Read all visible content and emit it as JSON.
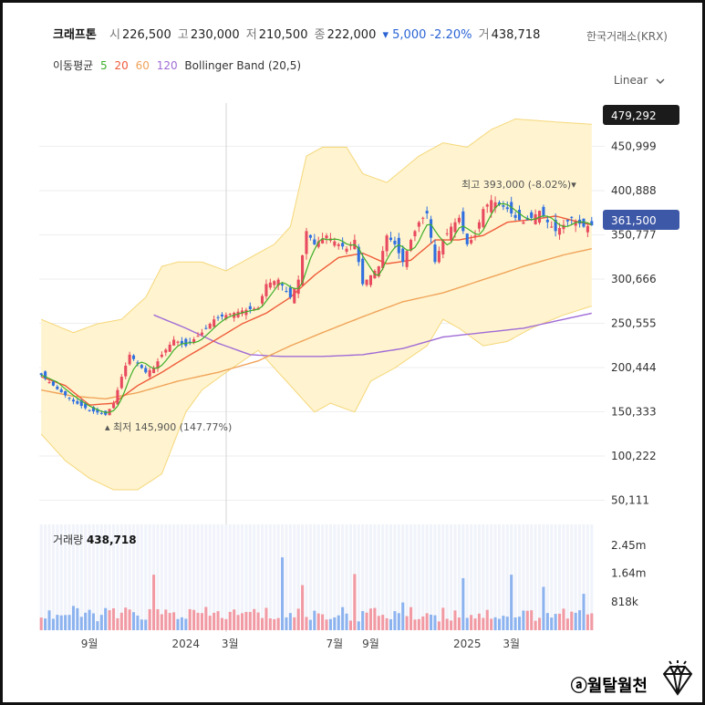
{
  "header": {
    "name": "크래프톤",
    "open_label": "시",
    "open": "226,500",
    "high_label": "고",
    "high": "230,000",
    "low_label": "저",
    "low": "210,500",
    "close_label": "종",
    "close": "222,000",
    "change": "▾ 5,000 -2.20%",
    "volume_label": "거",
    "volume": "438,718",
    "exchange": "한국거래소(KRX)"
  },
  "indicators": {
    "ma_label": "이동평균",
    "ma_periods": [
      "5",
      "20",
      "60",
      "120"
    ],
    "ma_colors": [
      "#3fae2a",
      "#ef5b3a",
      "#f0a35a",
      "#a06bd6"
    ],
    "bollinger": "Bollinger Band (20,5)"
  },
  "scale_mode": "Linear",
  "scale_icon": "chevron-down-icon",
  "colors": {
    "up": "#e84a5f",
    "down": "#2f6fe0",
    "band": "#fff4cf",
    "band_line": "#f5d77a"
  },
  "chart_data": {
    "type": "candlestick",
    "y_ticks": [
      "450,999",
      "400,888",
      "350,777",
      "300,666",
      "250,555",
      "200,444",
      "150,333",
      "100,222",
      "50,111"
    ],
    "y_tick_values": [
      450999,
      400888,
      350777,
      300666,
      250555,
      200444,
      150333,
      100222,
      50111
    ],
    "ylim": [
      30000,
      500000
    ],
    "x_ticks": [
      "9월",
      "2024",
      "3월",
      "7월",
      "9월",
      "2025",
      "3월"
    ],
    "x_tick_pos": [
      12,
      36,
      47,
      73,
      82,
      106,
      117
    ],
    "n": 138,
    "top_marker": "479,292",
    "current_marker": "361,500",
    "max_annotation": "최고 393,000 (-8.02%)▾",
    "min_annotation": "▴ 최저 145,900 (147.77%)",
    "close_anchors": [
      [
        0,
        192000
      ],
      [
        4,
        176000
      ],
      [
        8,
        162000
      ],
      [
        12,
        152000
      ],
      [
        16,
        147000
      ],
      [
        18,
        160000
      ],
      [
        20,
        190000
      ],
      [
        22,
        215000
      ],
      [
        24,
        205000
      ],
      [
        26,
        195000
      ],
      [
        28,
        200000
      ],
      [
        30,
        215000
      ],
      [
        33,
        232000
      ],
      [
        36,
        225000
      ],
      [
        40,
        240000
      ],
      [
        43,
        255000
      ],
      [
        46,
        260000
      ],
      [
        50,
        265000
      ],
      [
        54,
        268000
      ],
      [
        56,
        295000
      ],
      [
        59,
        300000
      ],
      [
        62,
        280000
      ],
      [
        64,
        300000
      ],
      [
        66,
        355000
      ],
      [
        68,
        340000
      ],
      [
        71,
        350000
      ],
      [
        74,
        340000
      ],
      [
        76,
        335000
      ],
      [
        78,
        345000
      ],
      [
        80,
        295000
      ],
      [
        82,
        305000
      ],
      [
        84,
        315000
      ],
      [
        86,
        350000
      ],
      [
        88,
        340000
      ],
      [
        90,
        320000
      ],
      [
        92,
        345000
      ],
      [
        94,
        365000
      ],
      [
        96,
        375000
      ],
      [
        98,
        320000
      ],
      [
        100,
        345000
      ],
      [
        102,
        360000
      ],
      [
        104,
        370000
      ],
      [
        106,
        340000
      ],
      [
        108,
        350000
      ],
      [
        110,
        380000
      ],
      [
        112,
        390000
      ],
      [
        114,
        385000
      ],
      [
        116,
        380000
      ],
      [
        118,
        370000
      ],
      [
        120,
        365000
      ],
      [
        122,
        370000
      ],
      [
        124,
        378000
      ],
      [
        126,
        365000
      ],
      [
        128,
        355000
      ],
      [
        130,
        362000
      ],
      [
        132,
        370000
      ],
      [
        135,
        360000
      ],
      [
        137,
        361500
      ]
    ],
    "bb_upper_anchors": [
      [
        0,
        255000
      ],
      [
        8,
        240000
      ],
      [
        14,
        250000
      ],
      [
        20,
        255000
      ],
      [
        26,
        280000
      ],
      [
        30,
        315000
      ],
      [
        34,
        320000
      ],
      [
        40,
        320000
      ],
      [
        46,
        310000
      ],
      [
        52,
        325000
      ],
      [
        58,
        340000
      ],
      [
        62,
        360000
      ],
      [
        66,
        440000
      ],
      [
        70,
        450000
      ],
      [
        76,
        450000
      ],
      [
        80,
        420000
      ],
      [
        86,
        410000
      ],
      [
        94,
        440000
      ],
      [
        100,
        455000
      ],
      [
        106,
        450000
      ],
      [
        112,
        470000
      ],
      [
        118,
        482000
      ],
      [
        124,
        480000
      ],
      [
        130,
        478000
      ],
      [
        137,
        476000
      ]
    ],
    "bb_lower_anchors": [
      [
        0,
        125000
      ],
      [
        6,
        95000
      ],
      [
        12,
        75000
      ],
      [
        18,
        62000
      ],
      [
        24,
        62000
      ],
      [
        30,
        80000
      ],
      [
        36,
        150000
      ],
      [
        40,
        175000
      ],
      [
        46,
        195000
      ],
      [
        54,
        220000
      ],
      [
        60,
        190000
      ],
      [
        64,
        170000
      ],
      [
        68,
        150000
      ],
      [
        72,
        160000
      ],
      [
        78,
        150000
      ],
      [
        82,
        185000
      ],
      [
        88,
        200000
      ],
      [
        96,
        225000
      ],
      [
        100,
        255000
      ],
      [
        104,
        245000
      ],
      [
        110,
        225000
      ],
      [
        116,
        230000
      ],
      [
        122,
        245000
      ],
      [
        130,
        260000
      ],
      [
        137,
        270000
      ]
    ],
    "ma20_anchors": [
      [
        0,
        190000
      ],
      [
        6,
        180000
      ],
      [
        12,
        158000
      ],
      [
        18,
        160000
      ],
      [
        24,
        180000
      ],
      [
        30,
        195000
      ],
      [
        36,
        212000
      ],
      [
        42,
        228000
      ],
      [
        50,
        250000
      ],
      [
        56,
        262000
      ],
      [
        62,
        280000
      ],
      [
        68,
        305000
      ],
      [
        74,
        325000
      ],
      [
        80,
        330000
      ],
      [
        86,
        318000
      ],
      [
        92,
        322000
      ],
      [
        98,
        345000
      ],
      [
        104,
        345000
      ],
      [
        110,
        350000
      ],
      [
        116,
        365000
      ],
      [
        122,
        368000
      ],
      [
        128,
        372000
      ],
      [
        134,
        365000
      ],
      [
        137,
        362000
      ]
    ],
    "ma60_anchors": [
      [
        0,
        175000
      ],
      [
        8,
        168000
      ],
      [
        16,
        165000
      ],
      [
        24,
        172000
      ],
      [
        34,
        185000
      ],
      [
        44,
        195000
      ],
      [
        54,
        208000
      ],
      [
        62,
        225000
      ],
      [
        70,
        240000
      ],
      [
        80,
        258000
      ],
      [
        90,
        275000
      ],
      [
        100,
        285000
      ],
      [
        110,
        300000
      ],
      [
        120,
        315000
      ],
      [
        130,
        328000
      ],
      [
        137,
        335000
      ]
    ],
    "ma120_anchors": [
      [
        28,
        260000
      ],
      [
        36,
        245000
      ],
      [
        44,
        228000
      ],
      [
        52,
        215000
      ],
      [
        60,
        213000
      ],
      [
        70,
        213000
      ],
      [
        80,
        215000
      ],
      [
        90,
        222000
      ],
      [
        100,
        235000
      ],
      [
        110,
        240000
      ],
      [
        120,
        245000
      ],
      [
        130,
        255000
      ],
      [
        137,
        262000
      ]
    ],
    "volume_ticks": [
      "2.45m",
      "1.64m",
      "818k"
    ],
    "volume_tick_values": [
      2450000,
      1640000,
      818000
    ],
    "volume_max": 3050000,
    "volume_spikes": [
      [
        8,
        700000
      ],
      [
        28,
        1600000
      ],
      [
        53,
        610000
      ],
      [
        60,
        2100000
      ],
      [
        65,
        1300000
      ],
      [
        78,
        1620000
      ],
      [
        90,
        800000
      ],
      [
        105,
        1500000
      ],
      [
        117,
        1600000
      ],
      [
        125,
        1250000
      ],
      [
        135,
        1050000
      ]
    ],
    "volume_label": "거래량",
    "volume_value": "438,718"
  },
  "watermark": {
    "brand": "ⓐ월탈월천",
    "icon": "diamond-icon"
  }
}
